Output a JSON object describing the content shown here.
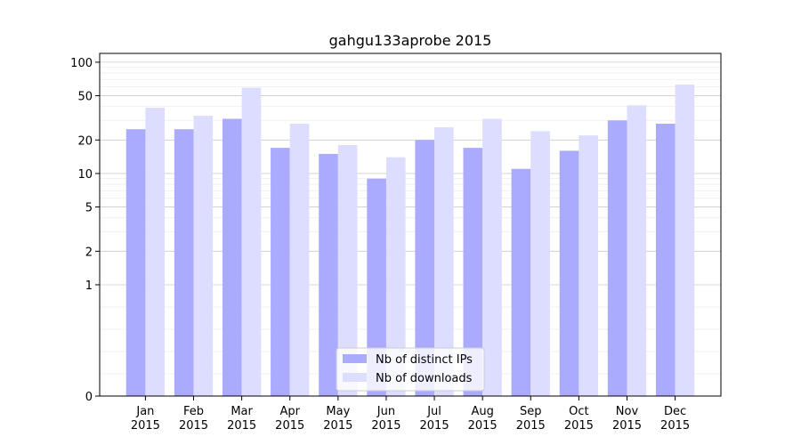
{
  "chart_data": {
    "type": "bar",
    "title": "gahgu133aprobe 2015",
    "categories": [
      "Jan\n2015",
      "Feb\n2015",
      "Mar\n2015",
      "Apr\n2015",
      "May\n2015",
      "Jun\n2015",
      "Jul\n2015",
      "Aug\n2015",
      "Sep\n2015",
      "Oct\n2015",
      "Nov\n2015",
      "Dec\n2015"
    ],
    "series": [
      {
        "name": "Nb of distinct IPs",
        "color": "#aaaaff",
        "values": [
          25,
          25,
          31,
          17,
          15,
          9,
          20,
          17,
          11,
          16,
          30,
          28
        ]
      },
      {
        "name": "Nb of downloads",
        "color": "#ddddff",
        "values": [
          39,
          33,
          59,
          28,
          18,
          14,
          26,
          31,
          24,
          22,
          41,
          63
        ]
      }
    ],
    "yscale": "symlog",
    "ylim": [
      0,
      120
    ],
    "yticks": [
      0,
      1,
      2,
      5,
      10,
      20,
      50,
      100
    ],
    "grid": true,
    "legend": "lower-center"
  }
}
